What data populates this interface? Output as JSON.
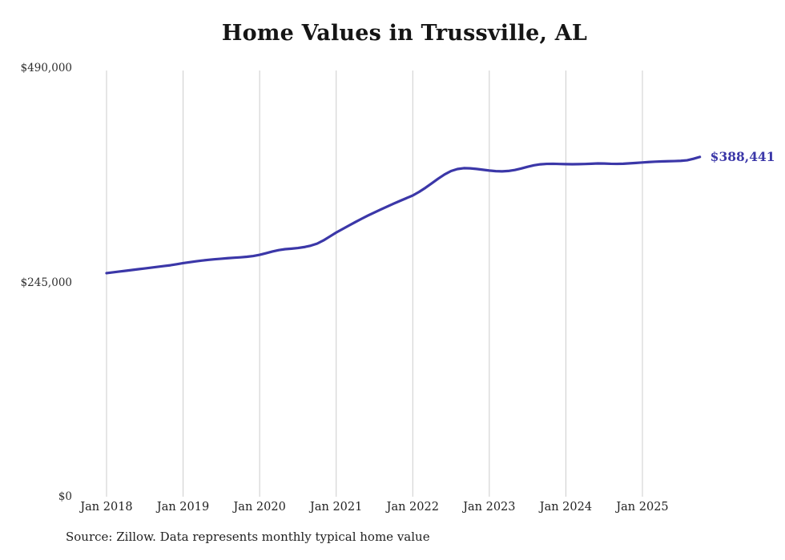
{
  "title": "Home Values in Trussville, AL",
  "source_note": "Source: Zillow. Data represents monthly typical home value",
  "end_label": "$388,441",
  "colors": {
    "line": "#3b37a8",
    "grid": "#cccccc",
    "title_text": "#151515",
    "tick_text": "#2e2e2e",
    "end_label_text": "#3b37a8"
  },
  "chart_data": {
    "type": "line",
    "title": "Home Values in Trussville, AL",
    "series_name": "Monthly typical home value",
    "frequency": "monthly",
    "start_month": "2018-01",
    "end_month": "2025-10",
    "ylim": [
      0,
      490000
    ],
    "grid": "vertical-only",
    "legend": "none",
    "end_value": 388441,
    "y_ticks": [
      {
        "label": "$490,000",
        "value": 490000
      },
      {
        "label": "$245,000",
        "value": 245000
      },
      {
        "label": "$0",
        "value": 0
      }
    ],
    "x_tick_labels": [
      "Jan 2018",
      "Jan 2019",
      "Jan 2020",
      "Jan 2021",
      "Jan 2022",
      "Jan 2023",
      "Jan 2024",
      "Jan 2025"
    ],
    "values": [
      255600,
      256500,
      257400,
      258300,
      259200,
      260100,
      261000,
      261900,
      262800,
      263700,
      264600,
      265800,
      267000,
      268100,
      269100,
      270000,
      270800,
      271500,
      272100,
      272700,
      273200,
      273700,
      274300,
      275200,
      276500,
      278400,
      280300,
      281900,
      283000,
      283600,
      284300,
      285400,
      287000,
      289300,
      293000,
      297500,
      302000,
      306000,
      310000,
      314000,
      317800,
      321500,
      325000,
      328400,
      331700,
      335000,
      338200,
      341300,
      344400,
      348500,
      353200,
      358400,
      363700,
      368500,
      372300,
      374600,
      375600,
      375400,
      374700,
      373800,
      372900,
      372200,
      372000,
      372400,
      373500,
      375200,
      377200,
      378900,
      380000,
      380500,
      380600,
      380400,
      380200,
      380100,
      380200,
      380400,
      380700,
      381000,
      380900,
      380600,
      380500,
      380700,
      381100,
      381600,
      382100,
      382600,
      383000,
      383300,
      383500,
      383700,
      384000,
      384600,
      386300,
      388441
    ]
  }
}
